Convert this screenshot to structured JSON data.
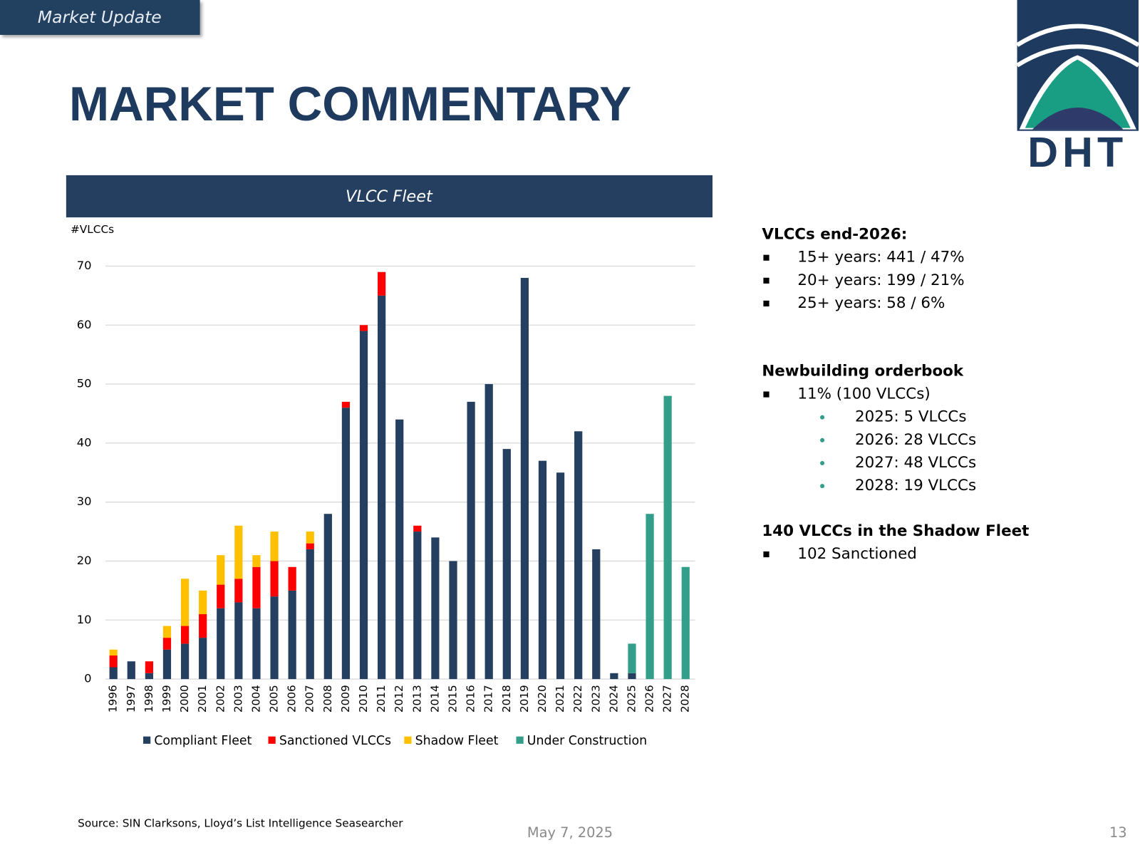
{
  "header": {
    "tag": "Market Update",
    "title": "MARKET COMMENTARY",
    "logo": "DHT"
  },
  "chart_data": {
    "type": "bar",
    "stacked": true,
    "title": "VLCC Fleet",
    "y_label": "#VLCCs",
    "categories": [
      "1996",
      "1997",
      "1998",
      "1999",
      "2000",
      "2001",
      "2002",
      "2003",
      "2004",
      "2005",
      "2006",
      "2007",
      "2008",
      "2009",
      "2010",
      "2011",
      "2012",
      "2013",
      "2014",
      "2015",
      "2016",
      "2017",
      "2018",
      "2019",
      "2020",
      "2021",
      "2022",
      "2023",
      "2024",
      "2025",
      "2026",
      "2027",
      "2028"
    ],
    "series": [
      {
        "name": "Compliant Fleet",
        "color": "#243f60",
        "values": [
          2,
          3,
          1,
          5,
          6,
          7,
          12,
          13,
          12,
          14,
          15,
          22,
          28,
          46,
          59,
          65,
          44,
          25,
          24,
          20,
          47,
          50,
          39,
          68,
          37,
          35,
          42,
          22,
          1,
          1,
          0,
          0,
          0
        ]
      },
      {
        "name": "Sanctioned VLCCs",
        "color": "#ff0000",
        "values": [
          2,
          0,
          2,
          2,
          3,
          4,
          4,
          4,
          7,
          6,
          4,
          1,
          0,
          1,
          1,
          4,
          0,
          1,
          0,
          0,
          0,
          0,
          0,
          0,
          0,
          0,
          0,
          0,
          0,
          0,
          0,
          0,
          0
        ]
      },
      {
        "name": "Shadow Fleet",
        "color": "#ffc000",
        "values": [
          1,
          0,
          0,
          2,
          8,
          4,
          5,
          9,
          2,
          5,
          0,
          2,
          0,
          0,
          0,
          0,
          0,
          0,
          0,
          0,
          0,
          0,
          0,
          0,
          0,
          0,
          0,
          0,
          0,
          0,
          0,
          0,
          0
        ]
      },
      {
        "name": "Under Construction",
        "color": "#339e8a",
        "values": [
          0,
          0,
          0,
          0,
          0,
          0,
          0,
          0,
          0,
          0,
          0,
          0,
          0,
          0,
          0,
          0,
          0,
          0,
          0,
          0,
          0,
          0,
          0,
          0,
          0,
          0,
          0,
          0,
          0,
          5,
          28,
          48,
          19
        ]
      }
    ],
    "ylim": [
      0,
      70
    ],
    "yticks": [
      0,
      10,
      20,
      30,
      40,
      50,
      60,
      70
    ],
    "grid": true,
    "legend": "bottom"
  },
  "commentary": [
    {
      "heading": "VLCCs end-2026:",
      "items": [
        {
          "text": "15+ years: 441 / 47%"
        },
        {
          "text": "20+ years: 199 / 21%"
        },
        {
          "text": "25+ years: 58 / 6%"
        }
      ]
    },
    {
      "heading": "Newbuilding orderbook",
      "items": [
        {
          "text": "11% (100 VLCCs)",
          "sub": [
            "2025: 5 VLCCs",
            "2026: 28 VLCCs",
            "2027: 48 VLCCs",
            "2028: 19 VLCCs"
          ]
        }
      ]
    },
    {
      "heading": "140 VLCCs in the Shadow Fleet",
      "items": [
        {
          "text": "102 Sanctioned"
        }
      ]
    }
  ],
  "footer": {
    "source": "Source: SIN Clarksons, Lloyd’s List Intelligence Seasearcher",
    "date": "May 7, 2025",
    "page": "13"
  }
}
